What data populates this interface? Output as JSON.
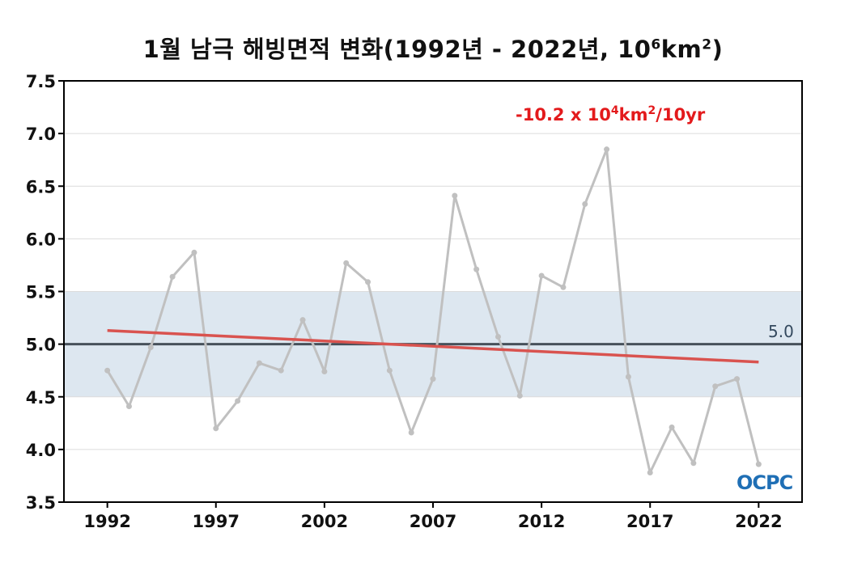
{
  "chart_data": {
    "type": "line",
    "title_main": "1월 남극 해빙면적 변화(1992년 - 2022년, 10",
    "title_exp1": "6",
    "title_unit": "km",
    "title_exp2": "2",
    "title_end": ")",
    "x": [
      1992,
      1993,
      1994,
      1995,
      1996,
      1997,
      1998,
      1999,
      2000,
      2001,
      2002,
      2003,
      2004,
      2005,
      2006,
      2007,
      2008,
      2009,
      2010,
      2011,
      2012,
      2013,
      2014,
      2015,
      2016,
      2017,
      2018,
      2019,
      2020,
      2021,
      2022
    ],
    "series": [
      {
        "values": [
          4.75,
          4.41,
          4.97,
          5.64,
          5.87,
          4.2,
          4.46,
          4.82,
          4.75,
          5.23,
          4.74,
          5.77,
          5.59,
          4.75,
          4.16,
          4.67,
          6.41,
          5.71,
          5.07,
          4.51,
          5.65,
          5.54,
          6.33,
          6.85,
          4.69,
          3.78,
          4.21,
          3.87,
          4.6,
          4.67,
          3.86
        ],
        "color": "#c0c0c0"
      }
    ],
    "trend": {
      "start": [
        1992,
        5.13
      ],
      "end": [
        2022,
        4.83
      ],
      "color": "#d9534f",
      "label_main": "-10.2 x 10",
      "label_exp1": "4",
      "label_unit": "km",
      "label_exp2": "2",
      "label_end": "/10yr"
    },
    "reference": {
      "value": 5.0,
      "label": "5.0",
      "color": "#46505a"
    },
    "band": {
      "low": 4.5,
      "high": 5.5,
      "color": "#dde7f0"
    },
    "xlim": [
      1990,
      2024
    ],
    "ylim": [
      3.5,
      7.5
    ],
    "xticks": [
      1992,
      1997,
      2002,
      2007,
      2012,
      2017,
      2022
    ],
    "yticks": [
      "3.5",
      "4.0",
      "4.5",
      "5.0",
      "5.5",
      "6.0",
      "6.5",
      "7.0",
      "7.5"
    ],
    "grid": true,
    "logo_text": "OCPC"
  }
}
